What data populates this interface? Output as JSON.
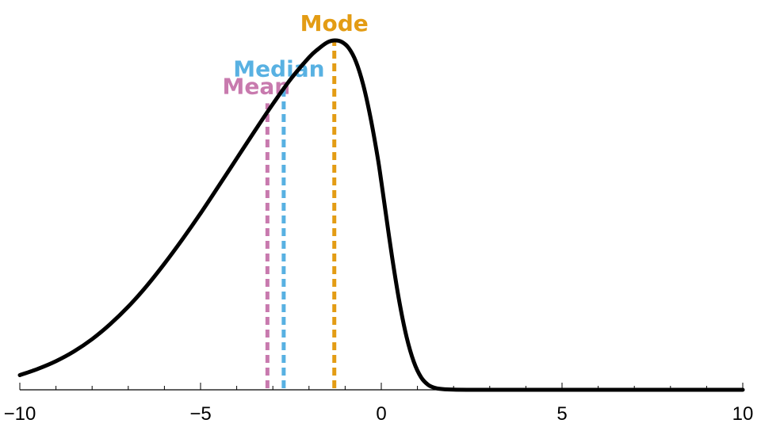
{
  "chart_data": {
    "type": "line",
    "title": "",
    "xlabel": "",
    "ylabel": "",
    "xlim": [
      -10,
      10
    ],
    "grid": false,
    "legend": "none",
    "x_ticks": [
      {
        "value": -10,
        "label": "−10"
      },
      {
        "value": -5,
        "label": "−5"
      },
      {
        "value": 0,
        "label": "0"
      },
      {
        "value": 5,
        "label": "5"
      },
      {
        "value": 10,
        "label": "10"
      }
    ],
    "curve": {
      "color": "#000000",
      "x": [
        -10,
        -9.5,
        -9,
        -8.5,
        -8,
        -7.5,
        -7,
        -6.5,
        -6,
        -5.5,
        -5,
        -4.5,
        -4,
        -3.5,
        -3,
        -2.5,
        -2,
        -1.75,
        -1.5,
        -1.3,
        -1.1,
        -0.9,
        -0.7,
        -0.5,
        -0.3,
        -0.1,
        0,
        0.1,
        0.3,
        0.5,
        0.7,
        0.9,
        1.1,
        1.3,
        1.5,
        1.7,
        2,
        2.5,
        3,
        4,
        5,
        6,
        7,
        8,
        9,
        10
      ],
      "y": [
        0.042,
        0.06,
        0.082,
        0.11,
        0.145,
        0.188,
        0.238,
        0.296,
        0.361,
        0.431,
        0.505,
        0.583,
        0.662,
        0.741,
        0.818,
        0.89,
        0.951,
        0.975,
        0.994,
        1.0,
        0.996,
        0.978,
        0.939,
        0.873,
        0.78,
        0.665,
        0.596,
        0.523,
        0.379,
        0.252,
        0.151,
        0.08,
        0.036,
        0.014,
        0.005,
        0.002,
        0.0005,
        0,
        0,
        0,
        0,
        0,
        0,
        0,
        0,
        0
      ]
    },
    "markers": [
      {
        "name": "mean",
        "label": "Mean",
        "x": -3.15,
        "height": 0.82,
        "color": "#c87aae"
      },
      {
        "name": "median",
        "label": "Median",
        "x": -2.7,
        "height": 0.87,
        "color": "#58b1e2"
      },
      {
        "name": "mode",
        "label": "Mode",
        "x": -1.3,
        "height": 1.0,
        "color": "#e39c14"
      }
    ]
  }
}
